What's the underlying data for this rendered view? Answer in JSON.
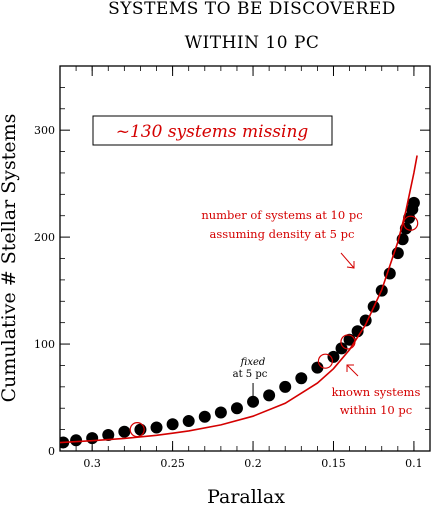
{
  "chart_data": {
    "type": "scatter",
    "title_lines": [
      "SYSTEMS TO BE DISCOVERED",
      "WITHIN 10 PC"
    ],
    "xlabel": "Parallax",
    "ylabel": "Cumulative # Stellar Systems",
    "xlim": [
      0.32,
      0.09
    ],
    "ylim": [
      0,
      360
    ],
    "x_ticks": [
      0.3,
      0.25,
      0.2,
      0.15,
      0.1
    ],
    "x_tick_labels": [
      "0.3",
      "0.25",
      "0.2",
      "0.15",
      "0.1"
    ],
    "y_ticks": [
      0,
      100,
      200,
      300
    ],
    "y_tick_labels": [
      "0",
      "100",
      "200",
      "300"
    ],
    "grid": false,
    "series": [
      {
        "label": "known systems within 10 pc",
        "color": "#000000",
        "marker": "filled-circle",
        "x": [
          0.318,
          0.31,
          0.3,
          0.29,
          0.28,
          0.27,
          0.26,
          0.25,
          0.24,
          0.23,
          0.22,
          0.21,
          0.2,
          0.19,
          0.18,
          0.17,
          0.16,
          0.15,
          0.145,
          0.14,
          0.135,
          0.13,
          0.125,
          0.12,
          0.115,
          0.11,
          0.107,
          0.105,
          0.103,
          0.101,
          0.1
        ],
        "y": [
          8,
          10,
          12,
          15,
          18,
          20,
          22,
          25,
          28,
          32,
          36,
          40,
          46,
          52,
          60,
          68,
          78,
          88,
          96,
          104,
          112,
          122,
          135,
          150,
          166,
          185,
          198,
          208,
          218,
          226,
          232
        ]
      },
      {
        "label": "number of systems at 10 pc assuming density at 5 pc",
        "color": "#d40000",
        "marker": "line",
        "x": [
          0.32,
          0.3,
          0.28,
          0.26,
          0.25,
          0.24,
          0.22,
          0.2,
          0.18,
          0.16,
          0.15,
          0.14,
          0.13,
          0.12,
          0.11,
          0.105,
          0.1,
          0.098
        ],
        "y": [
          7.9,
          9.6,
          11.8,
          14.7,
          16.6,
          18.8,
          24.4,
          32.5,
          44.6,
          63.5,
          77.0,
          94.8,
          118.3,
          150.5,
          195.3,
          224.6,
          260.0,
          276.3
        ]
      }
    ],
    "highlight_circles": [
      {
        "x": 0.272,
        "y": 20
      },
      {
        "x": 0.155,
        "y": 84
      },
      {
        "x": 0.141,
        "y": 102
      },
      {
        "x": 0.102,
        "y": 213
      }
    ],
    "annotations": {
      "missing": "~130 systems missing",
      "model_line1": "number of systems at 10 pc",
      "model_line2": "assuming density at 5 pc",
      "fixed_line1": "fixed",
      "fixed_line2": "at 5 pc",
      "fixed_x": 0.2,
      "known_line1": "known systems",
      "known_line2": "within 10 pc"
    }
  }
}
